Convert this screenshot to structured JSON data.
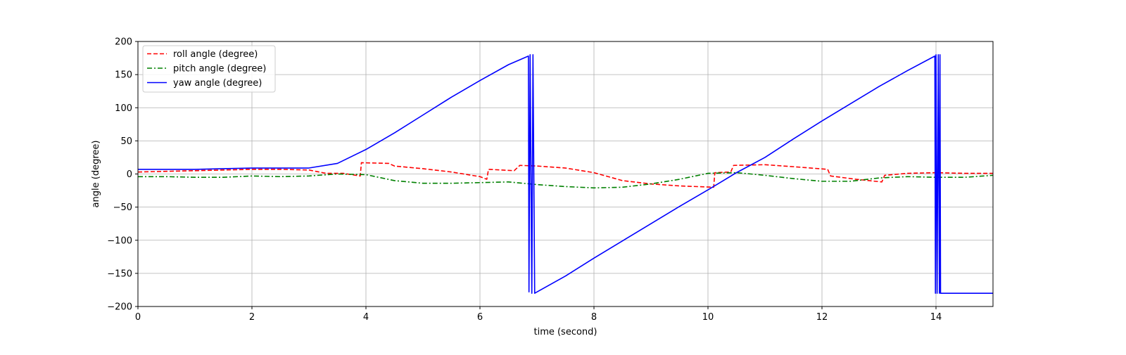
{
  "chart_data": {
    "type": "line",
    "title": "",
    "xlabel": "time (second)",
    "ylabel": "angle (degree)",
    "xlim": [
      0,
      15
    ],
    "ylim": [
      -200,
      200
    ],
    "grid": true,
    "legend_position": "top-left",
    "x_ticks": [
      0,
      2,
      4,
      6,
      8,
      10,
      12,
      14
    ],
    "y_ticks": [
      -200,
      -150,
      -100,
      -50,
      0,
      50,
      100,
      150,
      200
    ],
    "x_tick_labels": [
      "0",
      "2",
      "4",
      "6",
      "8",
      "10",
      "12",
      "14"
    ],
    "y_tick_labels": [
      "−200",
      "−150",
      "−100",
      "−50",
      "0",
      "50",
      "100",
      "150",
      "200"
    ],
    "series": [
      {
        "name": "roll angle (degree)",
        "color": "#ff0000",
        "line_style": "dashed",
        "points": [
          [
            0,
            3
          ],
          [
            0.5,
            4
          ],
          [
            1.0,
            5
          ],
          [
            1.5,
            6
          ],
          [
            2.0,
            7
          ],
          [
            2.5,
            7
          ],
          [
            3.0,
            6
          ],
          [
            3.3,
            1
          ],
          [
            3.6,
            1
          ],
          [
            3.9,
            -3
          ],
          [
            3.92,
            17
          ],
          [
            4.4,
            16
          ],
          [
            4.5,
            12
          ],
          [
            5.0,
            8
          ],
          [
            5.5,
            3
          ],
          [
            6.0,
            -4
          ],
          [
            6.12,
            -8
          ],
          [
            6.15,
            7
          ],
          [
            6.6,
            5
          ],
          [
            6.7,
            13
          ],
          [
            7.0,
            12
          ],
          [
            7.5,
            9
          ],
          [
            8.0,
            2
          ],
          [
            8.5,
            -10
          ],
          [
            9.0,
            -15
          ],
          [
            9.5,
            -18
          ],
          [
            10.1,
            -20
          ],
          [
            10.12,
            2
          ],
          [
            10.4,
            3
          ],
          [
            10.45,
            13
          ],
          [
            11.0,
            14
          ],
          [
            11.5,
            11
          ],
          [
            12.1,
            7
          ],
          [
            12.15,
            -3
          ],
          [
            12.6,
            -8
          ],
          [
            13.05,
            -12
          ],
          [
            13.1,
            -2
          ],
          [
            13.5,
            1
          ],
          [
            14.0,
            2
          ],
          [
            14.5,
            1
          ],
          [
            15.0,
            1
          ]
        ]
      },
      {
        "name": "pitch angle (degree)",
        "color": "#008000",
        "line_style": "dashdot",
        "points": [
          [
            0,
            -4
          ],
          [
            0.5,
            -4
          ],
          [
            1.0,
            -5
          ],
          [
            1.5,
            -5
          ],
          [
            2.0,
            -3
          ],
          [
            2.5,
            -4
          ],
          [
            3.0,
            -3
          ],
          [
            3.5,
            0
          ],
          [
            4.0,
            -1
          ],
          [
            4.5,
            -10
          ],
          [
            5.0,
            -14
          ],
          [
            5.5,
            -14
          ],
          [
            6.0,
            -13
          ],
          [
            6.5,
            -12
          ],
          [
            7.0,
            -16
          ],
          [
            7.5,
            -19
          ],
          [
            8.0,
            -21
          ],
          [
            8.5,
            -20
          ],
          [
            9.0,
            -15
          ],
          [
            9.5,
            -8
          ],
          [
            10.0,
            1
          ],
          [
            10.5,
            2
          ],
          [
            11.0,
            -2
          ],
          [
            11.5,
            -7
          ],
          [
            12.0,
            -11
          ],
          [
            12.5,
            -11
          ],
          [
            13.0,
            -6
          ],
          [
            13.5,
            -4
          ],
          [
            14.0,
            -5
          ],
          [
            14.5,
            -5
          ],
          [
            15.0,
            -2
          ]
        ]
      },
      {
        "name": "yaw angle (degree)",
        "color": "#0000ff",
        "line_style": "solid",
        "points": [
          [
            0,
            7
          ],
          [
            0.5,
            7
          ],
          [
            1.0,
            7
          ],
          [
            1.5,
            8
          ],
          [
            2.0,
            9
          ],
          [
            2.5,
            9
          ],
          [
            3.0,
            9
          ],
          [
            3.5,
            16
          ],
          [
            4.0,
            37
          ],
          [
            4.5,
            62
          ],
          [
            5.0,
            89
          ],
          [
            5.5,
            116
          ],
          [
            6.0,
            141
          ],
          [
            6.5,
            165
          ],
          [
            6.85,
            178
          ],
          [
            6.86,
            -178
          ],
          [
            6.88,
            180
          ],
          [
            6.91,
            -180
          ],
          [
            6.93,
            180
          ],
          [
            6.96,
            -180
          ],
          [
            7.0,
            -178
          ],
          [
            7.5,
            -154
          ],
          [
            8.0,
            -127
          ],
          [
            8.5,
            -101
          ],
          [
            9.0,
            -75
          ],
          [
            9.5,
            -49
          ],
          [
            10.0,
            -24
          ],
          [
            10.5,
            2
          ],
          [
            11.0,
            25
          ],
          [
            11.5,
            53
          ],
          [
            12.0,
            80
          ],
          [
            12.5,
            106
          ],
          [
            13.0,
            132
          ],
          [
            13.5,
            156
          ],
          [
            13.98,
            178
          ],
          [
            13.99,
            -180
          ],
          [
            14.0,
            180
          ],
          [
            14.02,
            -180
          ],
          [
            14.04,
            180
          ],
          [
            14.06,
            -180
          ],
          [
            14.07,
            180
          ],
          [
            14.08,
            -180
          ],
          [
            15.0,
            -180
          ]
        ]
      }
    ]
  }
}
